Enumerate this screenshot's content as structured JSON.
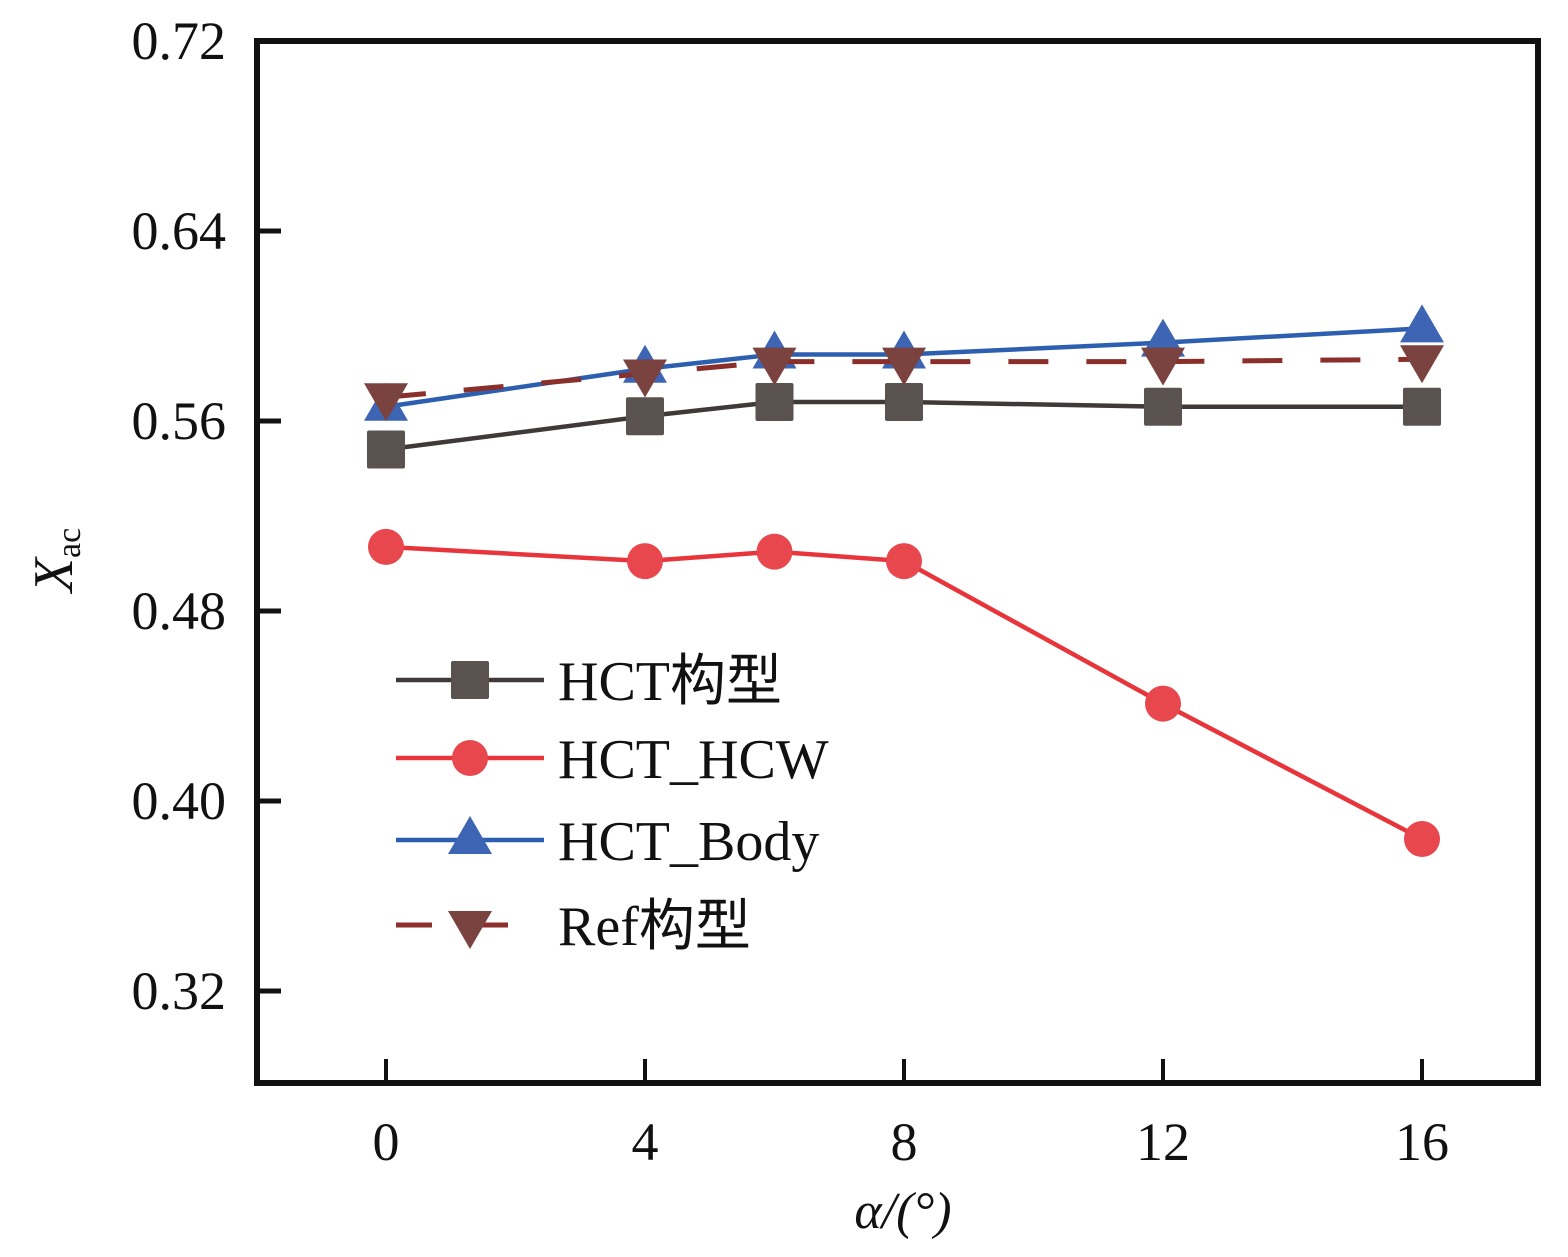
{
  "chart_data": {
    "type": "line",
    "title": "",
    "xlabel": "α/(°)",
    "ylabel": "X",
    "ylabel_sub": "ac",
    "xlim": [
      -2,
      18
    ],
    "ylim": [
      0.295,
      0.72
    ],
    "xticks": [
      0,
      4,
      8,
      12,
      16
    ],
    "xtick_labels": [
      "0",
      "4",
      "8",
      "12",
      "16"
    ],
    "yticks": [
      0.72,
      0.64,
      0.56,
      0.48,
      0.4,
      0.32
    ],
    "ytick_labels": [
      "0.72",
      "0.64",
      "0.56",
      "0.48",
      "0.40",
      "0.32"
    ],
    "grid": false,
    "legend_position": "center-left",
    "x": [
      0,
      4,
      6,
      8,
      12,
      16
    ],
    "series": [
      {
        "name": "HCT构型",
        "marker": "square",
        "dash": false,
        "color": "#3f3a38",
        "marker_color": "#5a524f",
        "values": [
          0.548,
          0.562,
          0.568,
          0.568,
          0.566,
          0.566
        ]
      },
      {
        "name": "HCT_HCW",
        "marker": "circle",
        "dash": false,
        "color": "#e8353b",
        "marker_color": "#e8474d",
        "values": [
          0.507,
          0.501,
          0.505,
          0.501,
          0.441,
          0.384
        ]
      },
      {
        "name": "HCT_Body",
        "marker": "triangle-up",
        "dash": false,
        "color": "#2d5fb0",
        "marker_color": "#3d65b3",
        "values": [
          0.566,
          0.582,
          0.588,
          0.588,
          0.593,
          0.599
        ]
      },
      {
        "name": "Ref构型",
        "marker": "triangle-down",
        "dash": true,
        "color": "#8a2f2a",
        "marker_color": "#7a4340",
        "values": [
          0.57,
          0.58,
          0.585,
          0.585,
          0.585,
          0.586
        ]
      }
    ]
  }
}
